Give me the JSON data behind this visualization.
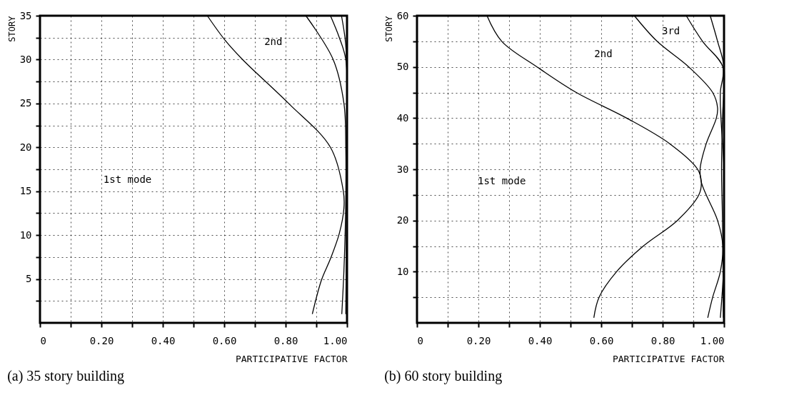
{
  "chart_data": [
    {
      "type": "line",
      "title": "(a)  35 story building",
      "xlabel": "PARTICIPATIVE FACTOR",
      "ylabel": "STORY",
      "grid": true,
      "line_style": "solid",
      "xlim": [
        0,
        1.0
      ],
      "ylim": [
        0,
        35
      ],
      "xticks": [
        0,
        {
          "value": 0.1,
          "label": null
        },
        {
          "value": 0.2,
          "label": "0.20"
        },
        {
          "value": 0.3,
          "label": null
        },
        {
          "value": 0.4,
          "label": "0.40"
        },
        {
          "value": 0.5,
          "label": null
        },
        {
          "value": 0.6,
          "label": "0.60"
        },
        {
          "value": 0.7,
          "label": null
        },
        {
          "value": 0.8,
          "label": "0.80"
        },
        {
          "value": 0.9,
          "label": null
        },
        {
          "value": 1.0,
          "label": "1.00"
        }
      ],
      "yticks": [
        {
          "value": 2.5,
          "label": null
        },
        5,
        {
          "value": 7.5,
          "label": null
        },
        10,
        {
          "value": 12.5,
          "label": null
        },
        15,
        {
          "value": 17.5,
          "label": null
        },
        20,
        {
          "value": 22.5,
          "label": null
        },
        25,
        {
          "value": 27.5,
          "label": null
        },
        30,
        {
          "value": 32.5,
          "label": null
        },
        35
      ],
      "series": [
        {
          "color": "#000000",
          "x": [
            0.545,
            0.603,
            0.66,
            0.81,
            0.946,
            0.988,
            0.99,
            0.975,
            0.946,
            0.917,
            0.887
          ],
          "values": [
            35,
            32.2,
            30,
            25,
            20,
            15,
            13.1,
            10.2,
            7.3,
            4.9,
            1
          ]
        },
        {
          "color": "#000000",
          "x": [
            0.866,
            0.955,
            0.99,
            0.996,
            0.995,
            0.99,
            0.983
          ],
          "values": [
            35,
            30,
            25,
            20,
            12,
            6,
            1
          ]
        },
        {
          "color": "#000000",
          "x": [
            0.946,
            0.975,
            0.996,
            1.0,
            0.998,
            0.996
          ],
          "values": [
            35,
            32.5,
            30,
            22,
            10,
            1
          ]
        },
        {
          "color": "#000000",
          "x": [
            0.982,
            0.995,
            1.0,
            1.0,
            0.999
          ],
          "values": [
            35,
            32,
            28,
            15,
            1
          ]
        }
      ],
      "annotations": [
        "2nd",
        "1st mode"
      ]
    },
    {
      "type": "line",
      "title": "(b)  60 story building",
      "xlabel": "PARTICIPATIVE FACTOR",
      "ylabel": "STORY",
      "grid": true,
      "line_style": "solid",
      "xlim": [
        0,
        1.0
      ],
      "ylim": [
        0,
        60
      ],
      "xticks": [
        0,
        {
          "value": 0.1,
          "label": null
        },
        {
          "value": 0.2,
          "label": "0.20"
        },
        {
          "value": 0.3,
          "label": null
        },
        {
          "value": 0.4,
          "label": "0.40"
        },
        {
          "value": 0.5,
          "label": null
        },
        {
          "value": 0.6,
          "label": "0.60"
        },
        {
          "value": 0.7,
          "label": null
        },
        {
          "value": 0.8,
          "label": "0.80"
        },
        {
          "value": 0.9,
          "label": null
        },
        {
          "value": 1.0,
          "label": "1.00"
        }
      ],
      "yticks": [
        {
          "value": 5,
          "label": null
        },
        10,
        {
          "value": 15,
          "label": null
        },
        20,
        {
          "value": 25,
          "label": null
        },
        30,
        {
          "value": 35,
          "label": null
        },
        40,
        {
          "value": 45,
          "label": null
        },
        50,
        {
          "value": 55,
          "label": null
        },
        60
      ],
      "series": [
        {
          "color": "#000000",
          "x": [
            0.228,
            0.276,
            0.391,
            0.519,
            0.683,
            0.823,
            0.914,
            0.926,
            0.918,
            0.848,
            0.737,
            0.65,
            0.593,
            0.576
          ],
          "values": [
            60,
            55,
            50,
            45,
            40,
            35,
            30,
            27.5,
            25,
            20,
            15,
            10,
            5,
            1
          ]
        },
        {
          "color": "#000000",
          "x": [
            0.708,
            0.782,
            0.885,
            0.963,
            0.979,
            0.975,
            0.942,
            0.922,
            0.926,
            0.942,
            0.979,
            0.996,
            0.988,
            0.963,
            0.947
          ],
          "values": [
            60,
            55,
            50,
            45,
            42,
            40,
            35,
            30,
            27.5,
            25,
            20,
            15,
            10,
            5,
            1
          ]
        },
        {
          "color": "#000000",
          "x": [
            0.877,
            0.93,
            0.996,
            0.988,
            0.99,
            1.0,
            1.0,
            0.998,
            0.988
          ],
          "values": [
            60,
            55,
            50,
            45,
            40,
            30,
            20,
            10,
            1
          ]
        },
        {
          "color": "#000000",
          "x": [
            0.955,
            0.979,
            1.0,
            0.995,
            0.992,
            0.995,
            0.998
          ],
          "values": [
            60,
            55,
            50,
            40,
            30,
            20,
            1
          ]
        }
      ],
      "annotations": [
        "3rd",
        "2nd",
        "1st mode"
      ]
    }
  ]
}
